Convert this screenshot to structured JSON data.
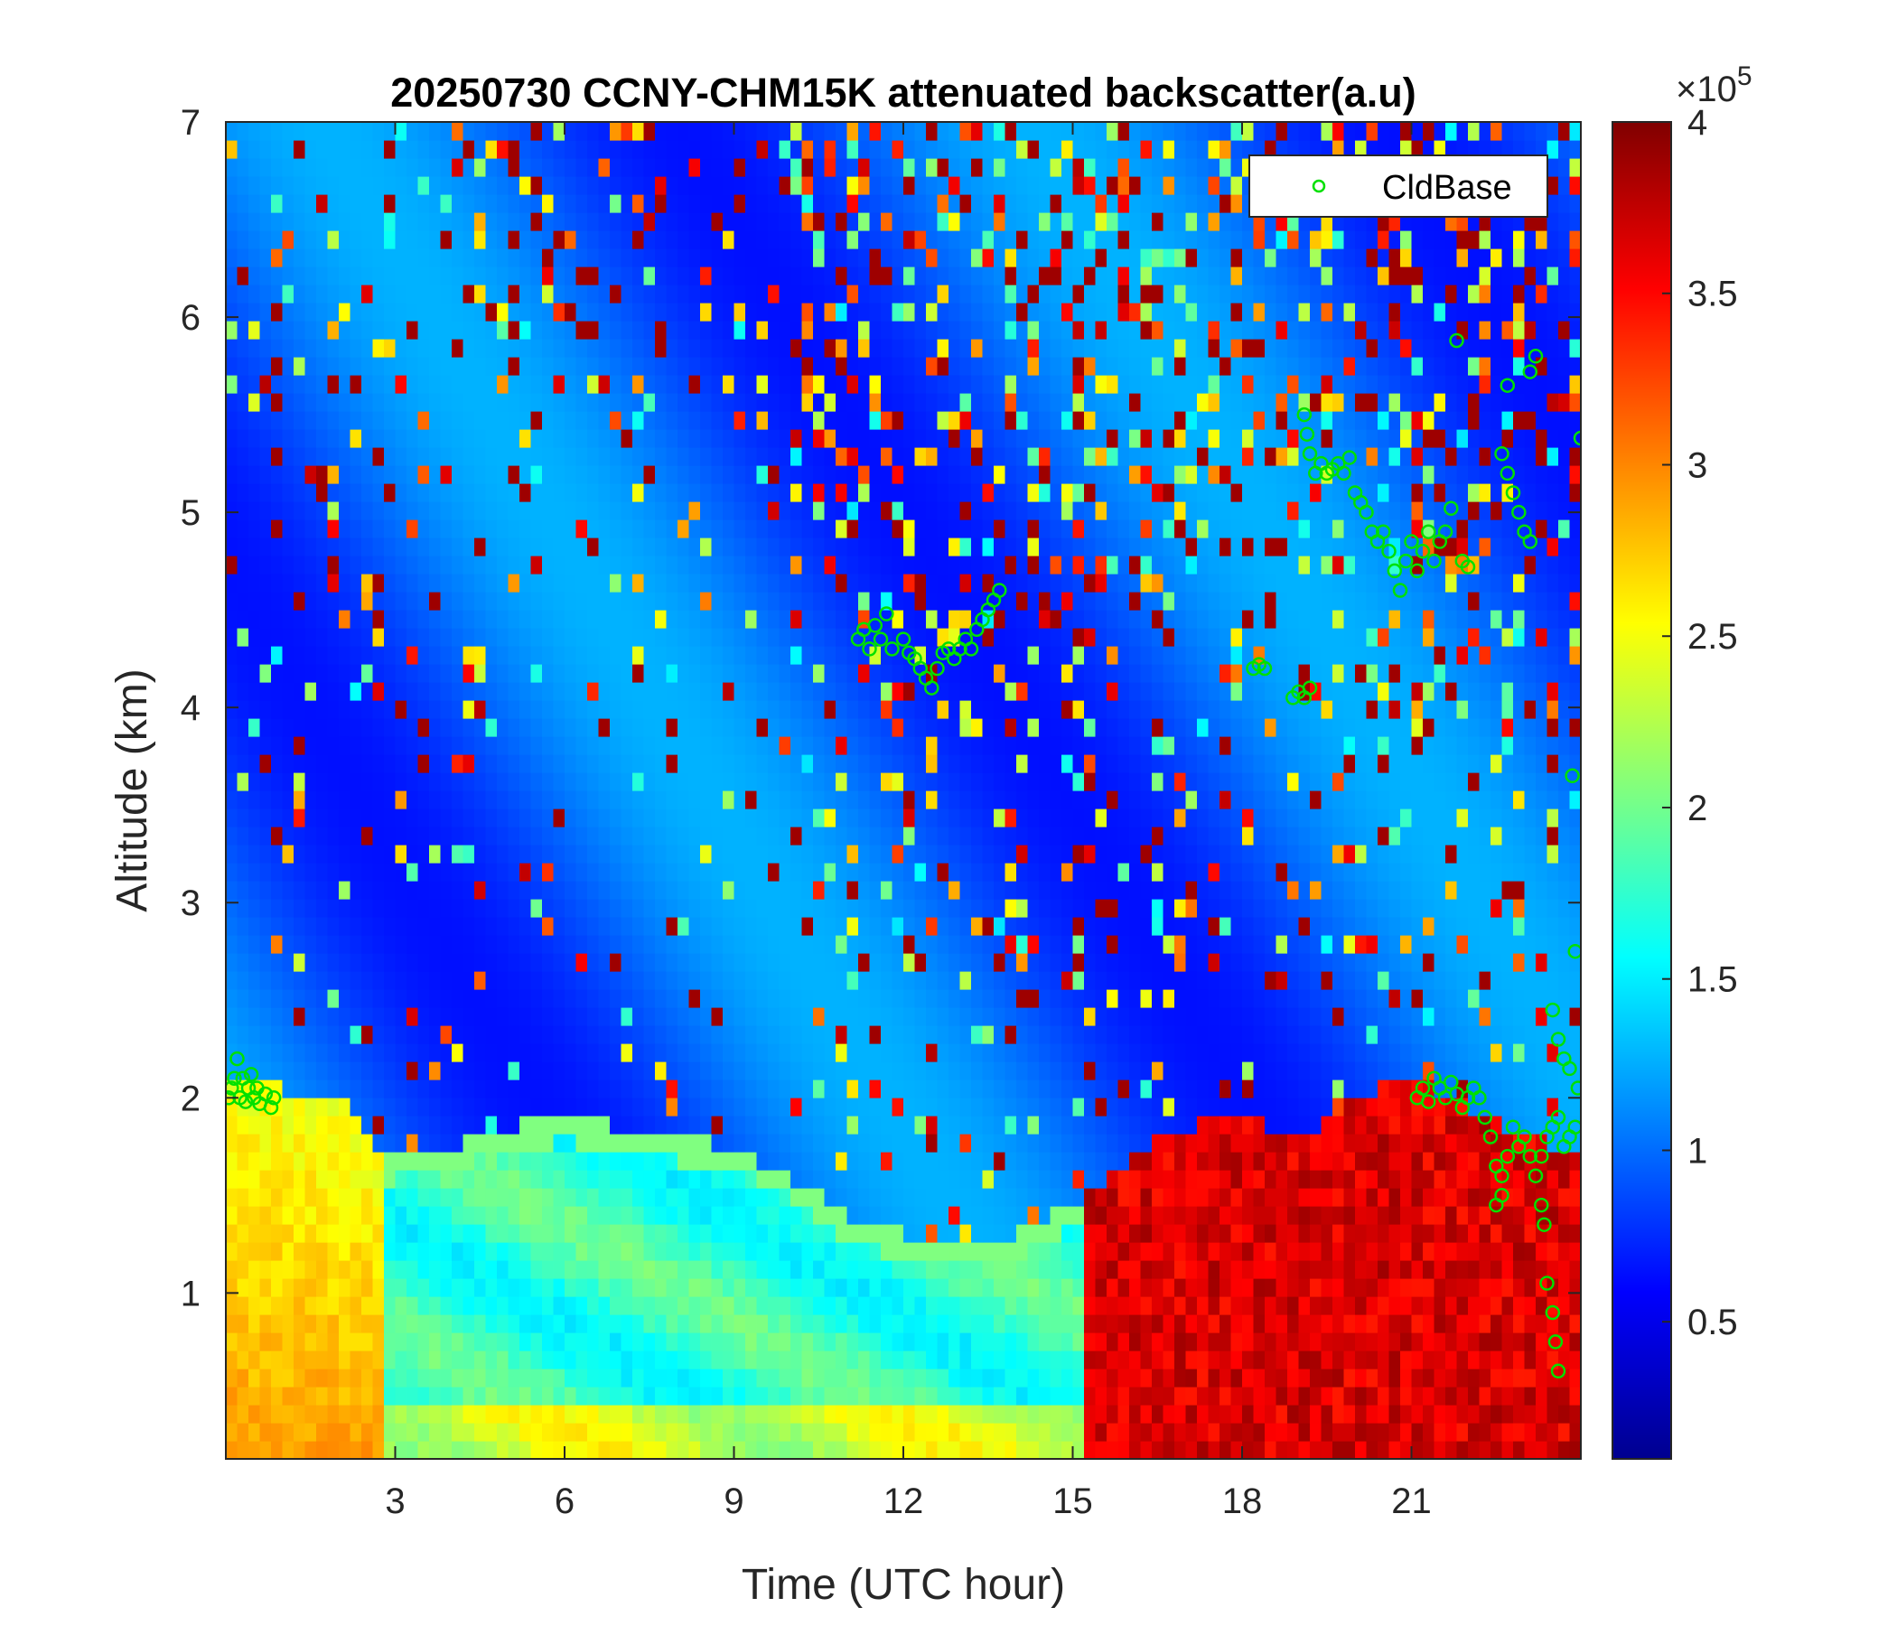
{
  "chart_data": {
    "type": "heatmap",
    "title": "20250730 CCNY-CHM15K attenuated backscatter(a.u)",
    "xlabel": "Time (UTC hour)",
    "ylabel": "Altitude (km)",
    "xlim": [
      0,
      24
    ],
    "ylim": [
      0.15,
      7
    ],
    "x_ticks": [
      3,
      6,
      9,
      12,
      15,
      18,
      21
    ],
    "y_ticks": [
      1,
      2,
      3,
      4,
      5,
      6,
      7
    ],
    "colorbar": {
      "colormap": "jet",
      "clim": [
        0.1,
        4
      ],
      "ticks": [
        0.5,
        1,
        1.5,
        2,
        2.5,
        3,
        3.5,
        4
      ],
      "exponent_label": "×10",
      "exponent_power": "5"
    },
    "legend": {
      "position": "top-right",
      "entries": [
        "CldBase"
      ]
    },
    "series": [
      {
        "name": "CldBase",
        "marker": "open-circle",
        "color": "#00e000",
        "points": [
          [
            0.05,
            2.0
          ],
          [
            0.1,
            2.05
          ],
          [
            0.15,
            2.1
          ],
          [
            0.2,
            2.2
          ],
          [
            0.25,
            2.0
          ],
          [
            0.3,
            2.1
          ],
          [
            0.35,
            1.98
          ],
          [
            0.4,
            2.05
          ],
          [
            0.45,
            2.12
          ],
          [
            0.5,
            2.0
          ],
          [
            0.55,
            2.05
          ],
          [
            0.6,
            1.97
          ],
          [
            0.7,
            2.02
          ],
          [
            0.8,
            1.95
          ],
          [
            0.85,
            2.0
          ],
          [
            11.2,
            4.35
          ],
          [
            11.3,
            4.4
          ],
          [
            11.4,
            4.3
          ],
          [
            11.5,
            4.42
          ],
          [
            11.6,
            4.35
          ],
          [
            11.7,
            4.48
          ],
          [
            11.8,
            4.3
          ],
          [
            12.0,
            4.35
          ],
          [
            12.1,
            4.28
          ],
          [
            12.2,
            4.25
          ],
          [
            12.3,
            4.2
          ],
          [
            12.4,
            4.15
          ],
          [
            12.5,
            4.1
          ],
          [
            12.6,
            4.2
          ],
          [
            12.7,
            4.28
          ],
          [
            12.8,
            4.3
          ],
          [
            12.9,
            4.25
          ],
          [
            13.0,
            4.3
          ],
          [
            13.1,
            4.35
          ],
          [
            13.2,
            4.3
          ],
          [
            13.3,
            4.4
          ],
          [
            13.4,
            4.45
          ],
          [
            13.5,
            4.5
          ],
          [
            13.6,
            4.55
          ],
          [
            13.7,
            4.6
          ],
          [
            18.2,
            4.2
          ],
          [
            18.3,
            4.22
          ],
          [
            18.4,
            4.2
          ],
          [
            18.9,
            4.05
          ],
          [
            19.0,
            4.08
          ],
          [
            19.1,
            4.05
          ],
          [
            19.2,
            4.1
          ],
          [
            19.1,
            5.5
          ],
          [
            19.15,
            5.4
          ],
          [
            19.2,
            5.3
          ],
          [
            19.3,
            5.2
          ],
          [
            19.4,
            5.25
          ],
          [
            19.5,
            5.2
          ],
          [
            19.6,
            5.22
          ],
          [
            19.7,
            5.25
          ],
          [
            19.8,
            5.2
          ],
          [
            19.9,
            5.28
          ],
          [
            20.0,
            5.1
          ],
          [
            20.1,
            5.05
          ],
          [
            20.2,
            5.0
          ],
          [
            20.3,
            4.9
          ],
          [
            20.4,
            4.85
          ],
          [
            20.5,
            4.9
          ],
          [
            20.6,
            4.8
          ],
          [
            20.7,
            4.7
          ],
          [
            20.8,
            4.6
          ],
          [
            20.9,
            4.75
          ],
          [
            21.0,
            4.85
          ],
          [
            21.1,
            4.7
          ],
          [
            21.2,
            4.8
          ],
          [
            21.3,
            4.9
          ],
          [
            21.4,
            4.75
          ],
          [
            21.5,
            4.85
          ],
          [
            21.6,
            4.9
          ],
          [
            21.7,
            5.02
          ],
          [
            21.8,
            5.88
          ],
          [
            21.9,
            4.75
          ],
          [
            22.0,
            4.72
          ],
          [
            22.6,
            5.3
          ],
          [
            22.7,
            5.2
          ],
          [
            22.8,
            5.1
          ],
          [
            22.9,
            5.0
          ],
          [
            23.0,
            4.9
          ],
          [
            23.1,
            4.85
          ],
          [
            22.7,
            5.65
          ],
          [
            23.1,
            5.72
          ],
          [
            23.2,
            5.8
          ],
          [
            21.1,
            2.0
          ],
          [
            21.2,
            2.05
          ],
          [
            21.3,
            1.98
          ],
          [
            21.4,
            2.1
          ],
          [
            21.5,
            2.05
          ],
          [
            21.6,
            2.0
          ],
          [
            21.7,
            2.08
          ],
          [
            21.8,
            2.02
          ],
          [
            21.9,
            1.95
          ],
          [
            22.0,
            2.0
          ],
          [
            22.1,
            2.05
          ],
          [
            22.2,
            2.0
          ],
          [
            22.3,
            1.9
          ],
          [
            22.4,
            1.8
          ],
          [
            22.5,
            1.65
          ],
          [
            22.6,
            1.5
          ],
          [
            22.5,
            1.45
          ],
          [
            22.6,
            1.6
          ],
          [
            22.7,
            1.7
          ],
          [
            22.8,
            1.85
          ],
          [
            22.9,
            1.75
          ],
          [
            23.0,
            1.8
          ],
          [
            23.1,
            1.7
          ],
          [
            23.2,
            1.6
          ],
          [
            23.3,
            1.7
          ],
          [
            23.4,
            1.8
          ],
          [
            23.5,
            1.85
          ],
          [
            23.6,
            1.9
          ],
          [
            23.7,
            1.75
          ],
          [
            23.8,
            1.8
          ],
          [
            23.9,
            1.85
          ],
          [
            23.95,
            2.05
          ],
          [
            23.3,
            1.45
          ],
          [
            23.35,
            1.35
          ],
          [
            23.4,
            1.05
          ],
          [
            23.5,
            0.9
          ],
          [
            23.55,
            0.75
          ],
          [
            23.6,
            0.6
          ],
          [
            23.5,
            2.45
          ],
          [
            23.6,
            2.3
          ],
          [
            23.9,
            2.75
          ],
          [
            23.85,
            3.65
          ],
          [
            24.0,
            5.38
          ],
          [
            23.7,
            2.2
          ],
          [
            23.8,
            2.15
          ]
        ]
      }
    ]
  }
}
